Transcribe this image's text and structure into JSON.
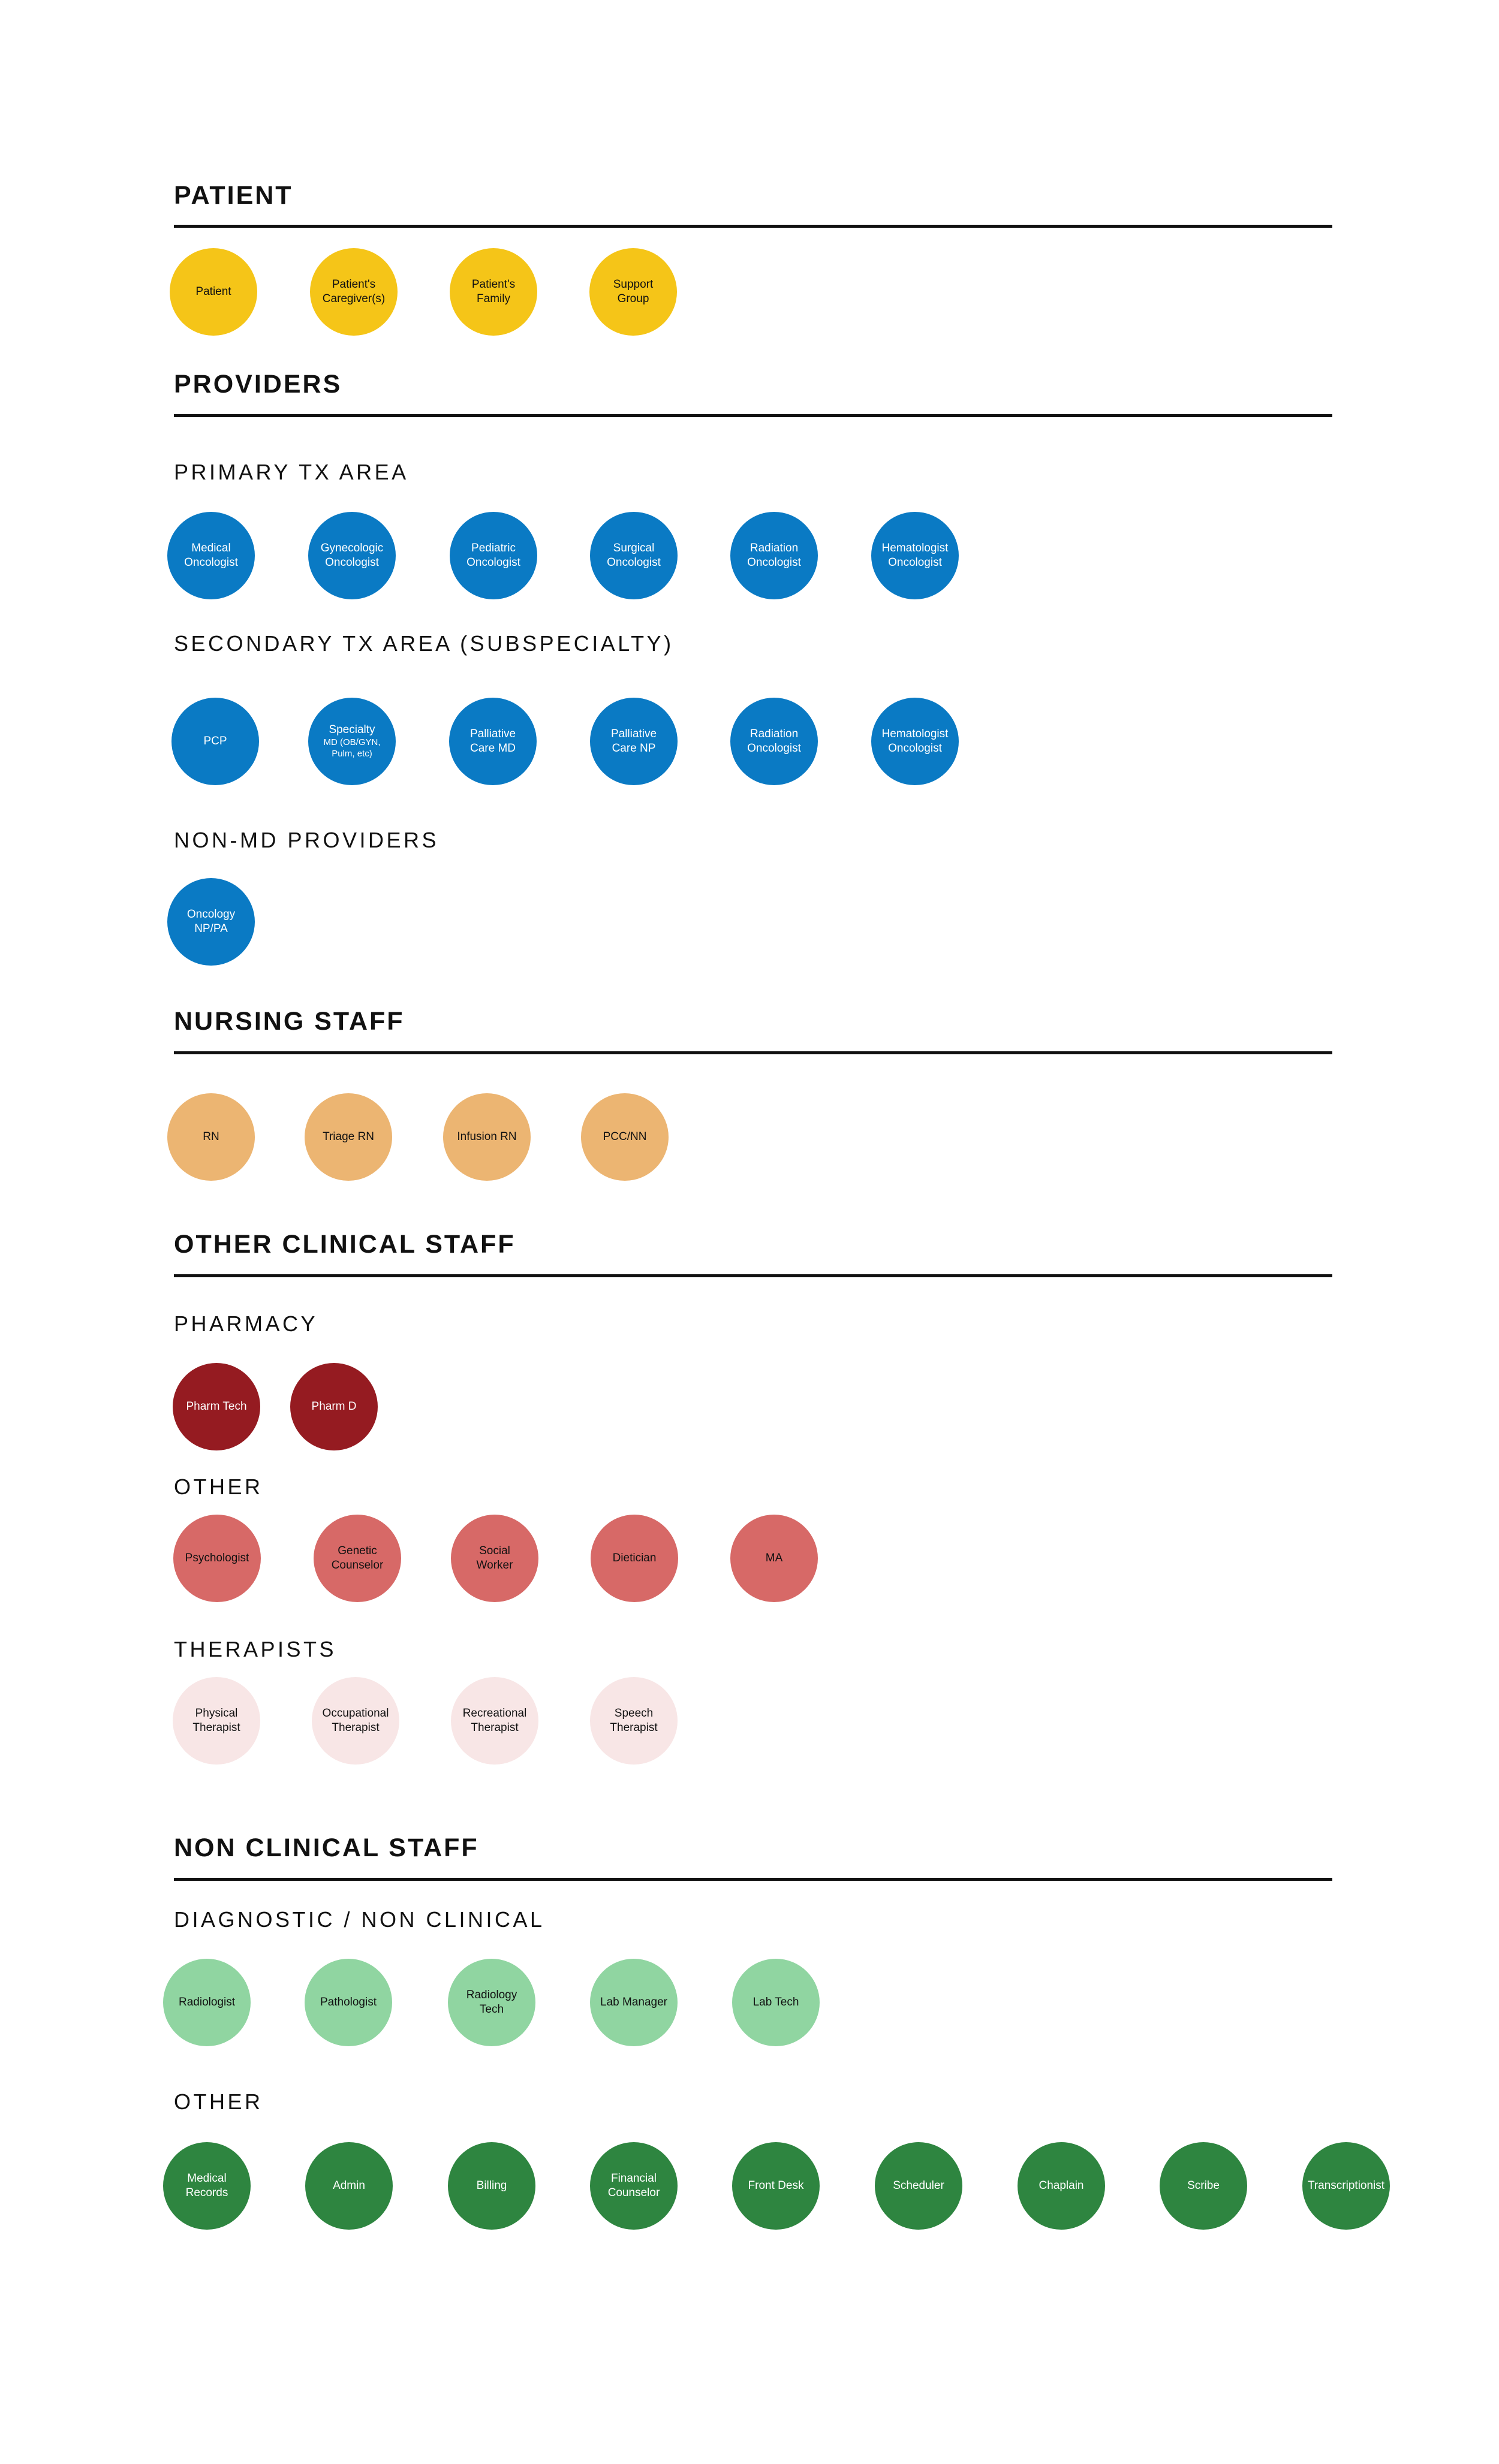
{
  "colors": {
    "patient": "#F5C518",
    "provider": "#0A7AC4",
    "nursing": "#ECB572",
    "pharmacy": "#951B21",
    "other_clinical": "#D76967",
    "therapist": "#F8E6E6",
    "diagnostic": "#90D5A1",
    "non_clinical_other": "#2E8540"
  },
  "sections": {
    "patient": "PATIENT",
    "providers": "PROVIDERS",
    "nursing": "NURSING STAFF",
    "other_clinical": "OTHER CLINICAL STAFF",
    "non_clinical": "NON CLINICAL STAFF"
  },
  "subsections": {
    "primary": "PRIMARY TX AREA",
    "secondary": "SECONDARY TX AREA (SUBSPECIALTY)",
    "non_md": "NON-MD PROVIDERS",
    "pharmacy": "PHARMACY",
    "other": "OTHER",
    "therapists": "THERAPISTS",
    "diagnostic": "DIAGNOSTIC / NON CLINICAL",
    "non_clinical_other": "OTHER"
  },
  "nodes": {
    "patient": [
      {
        "l1": "Patient",
        "l2": ""
      },
      {
        "l1": "Patient's",
        "l2": "Caregiver(s)"
      },
      {
        "l1": "Patient's",
        "l2": "Family"
      },
      {
        "l1": "Support",
        "l2": "Group"
      }
    ],
    "primary": [
      {
        "l1": "Medical",
        "l2": "Oncologist"
      },
      {
        "l1": "Gynecologic",
        "l2": "Oncologist"
      },
      {
        "l1": "Pediatric",
        "l2": "Oncologist"
      },
      {
        "l1": "Surgical",
        "l2": "Oncologist"
      },
      {
        "l1": "Radiation",
        "l2": "Oncologist"
      },
      {
        "l1": "Hematologist",
        "l2": "Oncologist"
      }
    ],
    "secondary": [
      {
        "l1": "PCP",
        "l2": ""
      },
      {
        "l1": "Specialty",
        "l2": "MD (OB/GYN,",
        "l3": "Pulm, etc)"
      },
      {
        "l1": "Palliative",
        "l2": "Care MD"
      },
      {
        "l1": "Palliative",
        "l2": "Care NP"
      },
      {
        "l1": "Radiation",
        "l2": "Oncologist"
      },
      {
        "l1": "Hematologist",
        "l2": "Oncologist"
      }
    ],
    "non_md": [
      {
        "l1": "Oncology",
        "l2": "NP/PA"
      }
    ],
    "nursing": [
      {
        "l1": "RN",
        "l2": ""
      },
      {
        "l1": "Triage RN",
        "l2": ""
      },
      {
        "l1": "Infusion RN",
        "l2": ""
      },
      {
        "l1": "PCC/NN",
        "l2": ""
      }
    ],
    "pharmacy": [
      {
        "l1": "Pharm Tech",
        "l2": ""
      },
      {
        "l1": "Pharm D",
        "l2": ""
      }
    ],
    "other_clinical": [
      {
        "l1": "Psychologist",
        "l2": ""
      },
      {
        "l1": "Genetic",
        "l2": "Counselor"
      },
      {
        "l1": "Social",
        "l2": "Worker"
      },
      {
        "l1": "Dietician",
        "l2": ""
      },
      {
        "l1": "MA",
        "l2": ""
      }
    ],
    "therapists": [
      {
        "l1": "Physical",
        "l2": "Therapist"
      },
      {
        "l1": "Occupational",
        "l2": "Therapist"
      },
      {
        "l1": "Recreational",
        "l2": "Therapist"
      },
      {
        "l1": "Speech",
        "l2": "Therapist"
      }
    ],
    "diagnostic": [
      {
        "l1": "Radiologist",
        "l2": ""
      },
      {
        "l1": "Pathologist",
        "l2": ""
      },
      {
        "l1": "Radiology",
        "l2": "Tech"
      },
      {
        "l1": "Lab Manager",
        "l2": ""
      },
      {
        "l1": "Lab Tech",
        "l2": ""
      }
    ],
    "non_clinical_other": [
      {
        "l1": "Medical",
        "l2": "Records"
      },
      {
        "l1": "Admin",
        "l2": ""
      },
      {
        "l1": "Billing",
        "l2": ""
      },
      {
        "l1": "Financial",
        "l2": "Counselor"
      },
      {
        "l1": "Front Desk",
        "l2": ""
      },
      {
        "l1": "Scheduler",
        "l2": ""
      },
      {
        "l1": "Chaplain",
        "l2": ""
      },
      {
        "l1": "Scribe",
        "l2": ""
      },
      {
        "l1": "Transcriptionist",
        "l2": ""
      }
    ]
  }
}
